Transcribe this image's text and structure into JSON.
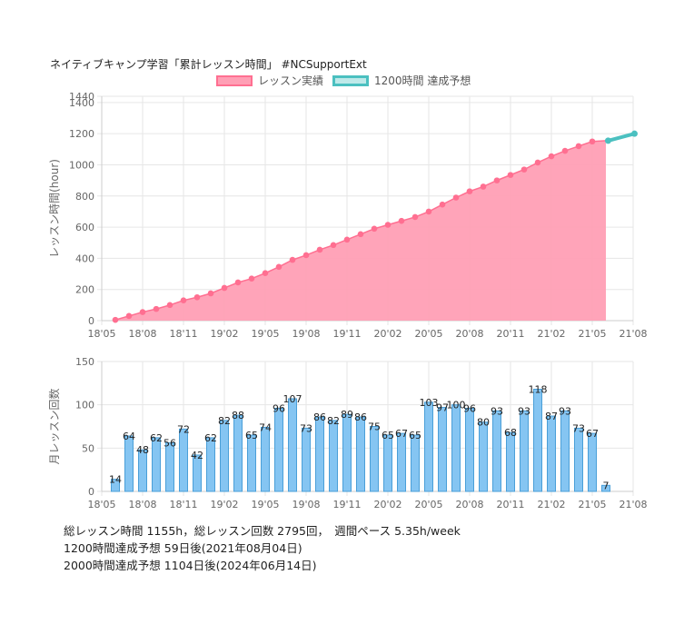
{
  "title": "ネイティブキャンプ学習「累計レッスン時間」 #NCSupportExt",
  "legend": {
    "actual_label": "レッスン実績",
    "forecast_label": "1200時間 達成予想"
  },
  "colors": {
    "actual_fill": "#ff9fb5",
    "actual_line": "#ff6f91",
    "forecast_line": "#4bc0c0",
    "bar_fill": "#85c5f2",
    "bar_border": "#4a9fd8"
  },
  "stats": {
    "line1": "総レッスン時間 1155h，総レッスン回数 2795回，　週間ペース 5.35h/week",
    "line2": "1200時間達成予想 59日後(2021年08月04日)",
    "line3": "2000時間達成予想 1104日後(2024年06月14日)"
  },
  "chart_data": [
    {
      "type": "area",
      "ylabel": "レッスン時間(hour)",
      "ylim": [
        0,
        1440
      ],
      "yticks": [
        "0",
        "200",
        "400",
        "600",
        "800",
        "1000",
        "1200",
        "1400",
        "1440"
      ],
      "xticks": [
        "18'05",
        "18'08",
        "18'11",
        "19'02",
        "19'05",
        "19'08",
        "19'11",
        "20'02",
        "20'05",
        "20'08",
        "20'11",
        "21'02",
        "21'05",
        "21'08"
      ],
      "grid": true,
      "series": [
        {
          "name": "レッスン実績",
          "x": [
            "2018-06",
            "2018-07",
            "2018-08",
            "2018-09",
            "2018-10",
            "2018-11",
            "2018-12",
            "2019-01",
            "2019-02",
            "2019-03",
            "2019-04",
            "2019-05",
            "2019-06",
            "2019-07",
            "2019-08",
            "2019-09",
            "2019-10",
            "2019-11",
            "2019-12",
            "2020-01",
            "2020-02",
            "2020-03",
            "2020-04",
            "2020-05",
            "2020-06",
            "2020-07",
            "2020-08",
            "2020-09",
            "2020-10",
            "2020-11",
            "2020-12",
            "2021-01",
            "2021-02",
            "2021-03",
            "2021-04",
            "2021-05",
            "2021-06"
          ],
          "values": [
            5,
            30,
            55,
            75,
            100,
            130,
            150,
            175,
            210,
            245,
            270,
            305,
            345,
            390,
            420,
            455,
            485,
            520,
            555,
            590,
            615,
            640,
            665,
            700,
            745,
            790,
            830,
            860,
            900,
            935,
            970,
            1015,
            1055,
            1090,
            1120,
            1150,
            1155
          ]
        },
        {
          "name": "1200時間 達成予想",
          "x": [
            "2021-06-06",
            "2021-08-04"
          ],
          "values": [
            1155,
            1200
          ]
        }
      ]
    },
    {
      "type": "bar",
      "ylabel": "月レッスン回数",
      "ylim": [
        0,
        150
      ],
      "yticks": [
        "0",
        "50",
        "100",
        "150"
      ],
      "xticks": [
        "18'05",
        "18'08",
        "18'11",
        "19'02",
        "19'05",
        "19'08",
        "19'11",
        "20'02",
        "20'05",
        "20'08",
        "20'11",
        "21'02",
        "21'05",
        "21'08"
      ],
      "grid": true,
      "x": [
        "2018-06",
        "2018-07",
        "2018-08",
        "2018-09",
        "2018-10",
        "2018-11",
        "2018-12",
        "2019-01",
        "2019-02",
        "2019-03",
        "2019-04",
        "2019-05",
        "2019-06",
        "2019-07",
        "2019-08",
        "2019-09",
        "2019-10",
        "2019-11",
        "2019-12",
        "2020-01",
        "2020-02",
        "2020-03",
        "2020-04",
        "2020-05",
        "2020-06",
        "2020-07",
        "2020-08",
        "2020-09",
        "2020-10",
        "2020-11",
        "2020-12",
        "2021-01",
        "2021-02",
        "2021-03",
        "2021-04",
        "2021-05",
        "2021-06"
      ],
      "values": [
        14,
        64,
        48,
        62,
        56,
        72,
        42,
        62,
        82,
        88,
        65,
        74,
        96,
        107,
        73,
        86,
        82,
        89,
        86,
        75,
        65,
        67,
        65,
        103,
        97,
        100,
        96,
        80,
        93,
        68,
        93,
        118,
        87,
        93,
        73,
        67,
        7
      ]
    }
  ]
}
